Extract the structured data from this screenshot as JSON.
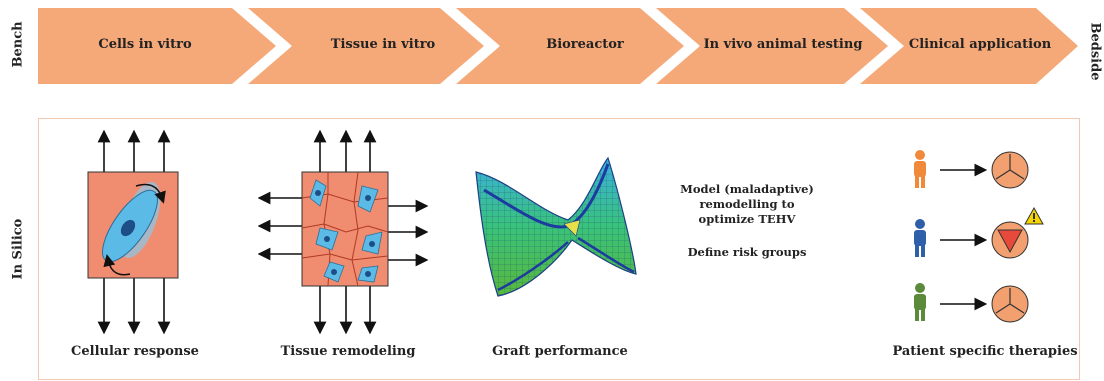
{
  "labels": {
    "bench": "Bench",
    "bedside": "Bedside",
    "in_silico": "In Silico"
  },
  "stages": [
    {
      "label": "Cells in vitro"
    },
    {
      "label": "Tissue in vitro"
    },
    {
      "label": "Bioreactor"
    },
    {
      "label": "In vivo animal testing"
    },
    {
      "label": "Clinical application"
    }
  ],
  "panels": {
    "cellular": "Cellular response",
    "tissue": "Tissue remodeling",
    "graft": "Graft performance",
    "patient": "Patient specific therapies"
  },
  "model": {
    "line1": "Model (maladaptive)",
    "line2": "remodelling to",
    "line3": "optimize TEHV",
    "risk": "Define risk groups"
  },
  "colors": {
    "chevron": "#f5a878",
    "cell_bg": "#f08c70",
    "cell": "#5bbbe6",
    "person_orange": "#f08a3a",
    "person_blue": "#2f5fa8",
    "person_green": "#5a8a3a",
    "valve_ring": "#f2a070",
    "valve_risk": "#e74a3a",
    "warning": "#f5d400"
  }
}
